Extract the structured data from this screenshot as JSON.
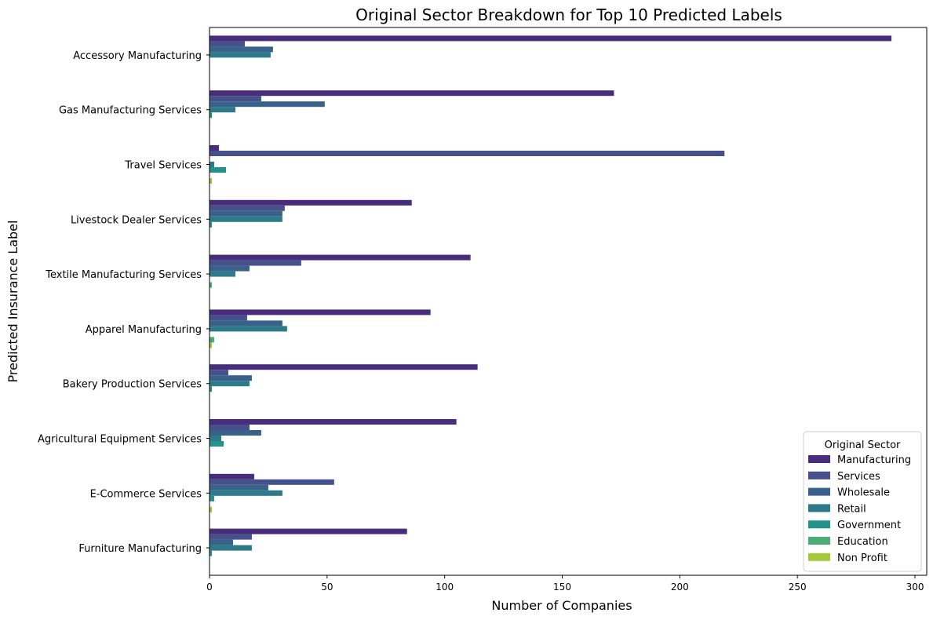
{
  "chart_data": {
    "type": "bar",
    "orientation": "horizontal",
    "title": "Original Sector Breakdown for Top 10 Predicted Labels",
    "xlabel": "Number of Companies",
    "ylabel": "Predicted Insurance Label",
    "xlim": [
      0,
      305
    ],
    "xticks": [
      0,
      50,
      100,
      150,
      200,
      250,
      300
    ],
    "grid": false,
    "legend": {
      "title": "Original Sector",
      "placement": "lower-right"
    },
    "categories": [
      "Accessory Manufacturing",
      "Gas Manufacturing Services",
      "Travel Services",
      "Livestock Dealer Services",
      "Textile Manufacturing Services",
      "Apparel Manufacturing",
      "Bakery Production Services",
      "Agricultural Equipment Services",
      "E-Commerce Services",
      "Furniture Manufacturing"
    ],
    "series": [
      {
        "name": "Manufacturing",
        "color": "#472d7b",
        "values": [
          290,
          172,
          4,
          86,
          111,
          94,
          114,
          105,
          19,
          84
        ]
      },
      {
        "name": "Services",
        "color": "#46508a",
        "values": [
          15,
          22,
          219,
          32,
          39,
          16,
          8,
          17,
          53,
          18
        ]
      },
      {
        "name": "Wholesale",
        "color": "#39628a",
        "values": [
          27,
          49,
          0,
          31,
          17,
          31,
          18,
          22,
          25,
          10
        ]
      },
      {
        "name": "Retail",
        "color": "#2e7a8a",
        "values": [
          26,
          11,
          2,
          31,
          11,
          33,
          17,
          5,
          31,
          18
        ]
      },
      {
        "name": "Government",
        "color": "#23928b",
        "values": [
          0,
          1,
          7,
          1,
          0,
          0,
          1,
          6,
          2,
          1
        ]
      },
      {
        "name": "Education",
        "color": "#4bac78",
        "values": [
          0,
          0,
          0,
          0,
          1,
          2,
          0,
          0,
          0,
          0
        ]
      },
      {
        "name": "Non Profit",
        "color": "#a6c63c",
        "values": [
          0,
          0,
          1,
          0,
          0,
          1,
          0,
          0,
          1,
          0
        ]
      }
    ]
  }
}
